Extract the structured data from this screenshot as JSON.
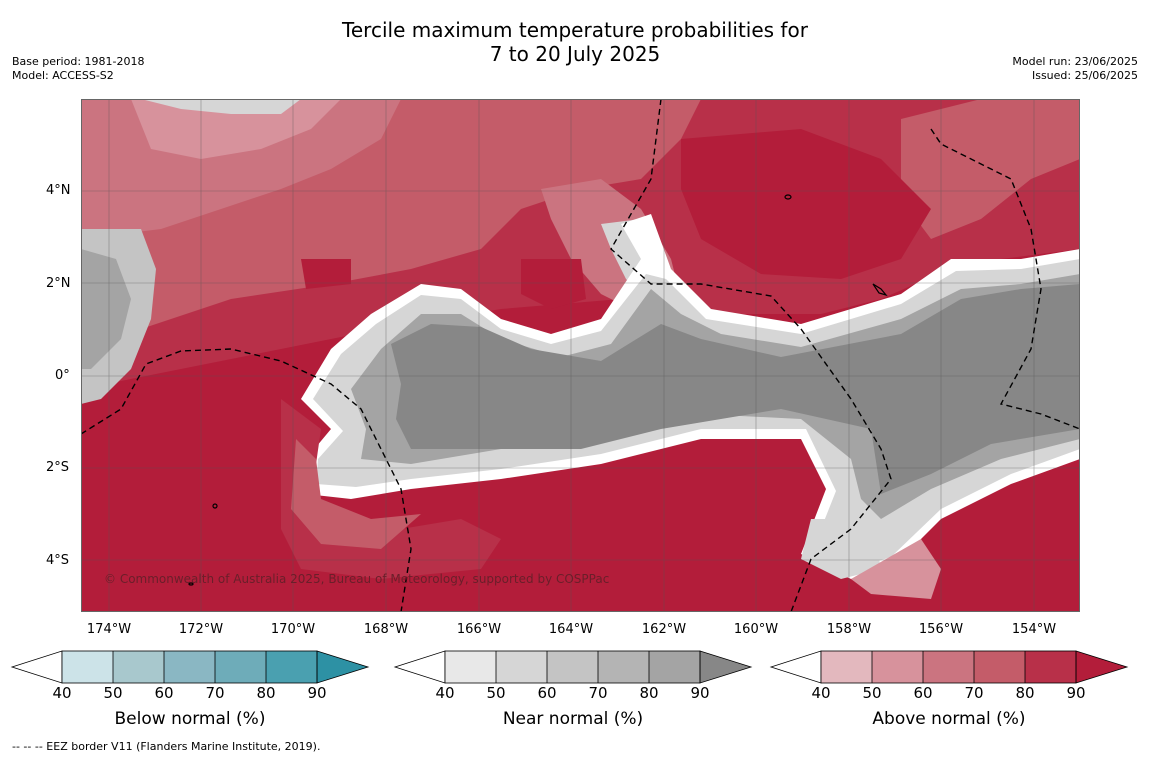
{
  "header": {
    "title_line1": "Tercile maximum temperature probabilities for",
    "title_line2": "7 to 20 July 2025",
    "base_period": "Base period: 1981-2018",
    "model": "Model: ACCESS-S2",
    "model_run": "Model run: 23/06/2025",
    "issued": "Issued: 25/06/2025"
  },
  "map": {
    "lat_labels": [
      "4°N",
      "2°N",
      "0°",
      "2°S",
      "4°S"
    ],
    "lon_labels": [
      "174°W",
      "172°W",
      "170°W",
      "168°W",
      "166°W",
      "164°W",
      "162°W",
      "160°W",
      "158°W",
      "156°W",
      "154°W"
    ],
    "copyright": "© Commonwealth of Australia 2025, Bureau of Meteorology, supported by COSPPac",
    "land_color": "#000000",
    "eez_style": "dashed"
  },
  "colorbars": [
    {
      "title": "Below normal (%)",
      "ticks": [
        "40",
        "50",
        "60",
        "70",
        "80",
        "90"
      ],
      "colors": [
        "#ffffff",
        "#cce3e8",
        "#a8c8cd",
        "#8ab7c3",
        "#6eacb9",
        "#4aa0b0",
        "#2d91a4"
      ]
    },
    {
      "title": "Near normal (%)",
      "ticks": [
        "40",
        "50",
        "60",
        "70",
        "80",
        "90"
      ],
      "colors": [
        "#ffffff",
        "#e8e8e8",
        "#d6d6d6",
        "#c4c4c4",
        "#b4b4b4",
        "#a4a4a4",
        "#878787"
      ]
    },
    {
      "title": "Above normal (%)",
      "ticks": [
        "40",
        "50",
        "60",
        "70",
        "80",
        "90"
      ],
      "colors": [
        "#ffffff",
        "#e3b8be",
        "#d7929c",
        "#cb7480",
        "#c45c69",
        "#b83049",
        "#b31d3a"
      ]
    }
  ],
  "footnote": "-- -- -- EEZ border V11 (Flanders Marine Institute, 2019)."
}
